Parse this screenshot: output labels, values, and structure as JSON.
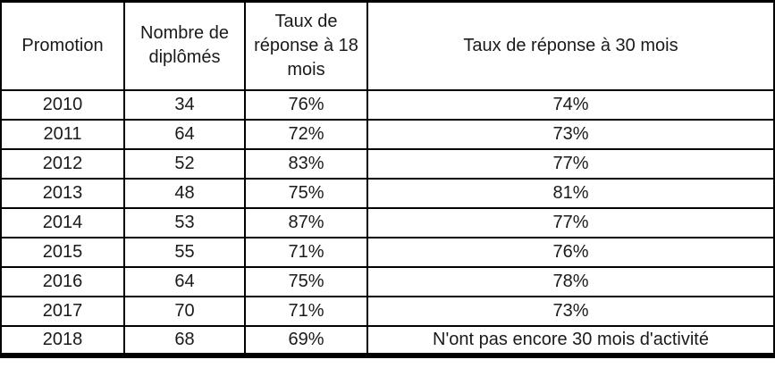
{
  "colors": {
    "grid": "#000000",
    "text": "#1a1a1a",
    "background": "#ffffff",
    "note_cell_background": "#d9d9d9"
  },
  "table": {
    "headers": [
      "Promotion",
      "Nombre de diplômés",
      "Taux de réponse à 18 mois",
      "Taux de réponse à 30 mois"
    ],
    "rows": [
      [
        "2010",
        "34",
        "76%",
        "74%"
      ],
      [
        "2011",
        "64",
        "72%",
        "73%"
      ],
      [
        "2012",
        "52",
        "83%",
        "77%"
      ],
      [
        "2013",
        "48",
        "75%",
        "81%"
      ],
      [
        "2014",
        "53",
        "87%",
        "77%"
      ],
      [
        "2015",
        "55",
        "71%",
        "76%"
      ],
      [
        "2016",
        "64",
        "75%",
        "78%"
      ],
      [
        "2017",
        "70",
        "71%",
        "73%"
      ],
      [
        "2018",
        "68",
        "69%",
        "N'ont pas encore 30 mois d'activité"
      ]
    ]
  }
}
